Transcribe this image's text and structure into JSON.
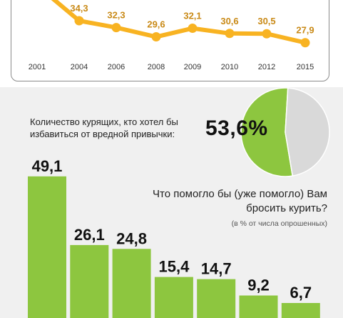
{
  "colors": {
    "line": "#f8b322",
    "bar": "#8dc63f",
    "pie_main": "#8dc63f",
    "pie_rest": "#d9d9d9",
    "line_label": "#c98a17"
  },
  "chart_data": [
    {
      "type": "line",
      "categories": [
        "2001",
        "2004",
        "2006",
        "2008",
        "2009",
        "2010",
        "2012",
        "2015"
      ],
      "values": [
        null,
        34.3,
        32.3,
        29.6,
        32.1,
        30.6,
        30.5,
        27.9
      ],
      "labels": [
        "",
        "34,3",
        "32,3",
        "29,6",
        "32,1",
        "30,6",
        "30,5",
        "27,9"
      ],
      "grid": false
    },
    {
      "type": "pie",
      "slices": [
        {
          "label": "53,6%",
          "value": 53.6
        },
        {
          "label": "",
          "value": 46.4
        }
      ],
      "question": "Количество курящих, кто хотел бы избавиться от вредной привычки:",
      "value_label": "53,6%"
    },
    {
      "type": "bar",
      "title": "Что помогло бы (уже помогло) Вам бросить курить?",
      "subtitle": "(в % от числа опрошенных)",
      "values": [
        49.1,
        26.1,
        24.8,
        15.4,
        14.7,
        9.2,
        6.7
      ],
      "labels": [
        "49,1",
        "26,1",
        "24,8",
        "15,4",
        "14,7",
        "9,2",
        "6,7"
      ],
      "grid": false
    }
  ]
}
